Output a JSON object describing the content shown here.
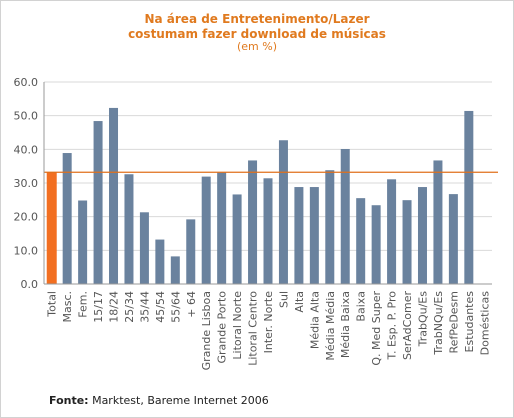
{
  "header": {
    "title_line1": "Na área de Entretenimento/Lazer",
    "title_line2": "costumam fazer download de músicas",
    "subtitle": "(em %)"
  },
  "source": {
    "label": "Fonte:",
    "text": "Marktest, Bareme Internet 2006"
  },
  "colors": {
    "bar": "#6a829e",
    "highlight": "#f26f21",
    "reference_line": "#e0701c",
    "grid": "#d9d9d9",
    "title": "#e07a1f"
  },
  "chart_data": {
    "type": "bar",
    "title": "Na área de Entretenimento/Lazer costumam fazer download de músicas",
    "subtitle": "(em %)",
    "xlabel": "",
    "ylabel": "",
    "ylim": [
      0,
      60
    ],
    "yticks": [
      "0.0",
      "10.0",
      "20.0",
      "30.0",
      "40.0",
      "50.0",
      "60.0"
    ],
    "grid": true,
    "reference_line": 33.2,
    "highlight_category": "Total",
    "categories": [
      "Total",
      "Masc.",
      "Fem.",
      "15/17",
      "18/24",
      "25/34",
      "35/44",
      "45/54",
      "55/64",
      "+ 64",
      "Grande Lisboa",
      "Grande Porto",
      "Litoral Norte",
      "Litoral Centro",
      "Inter. Norte",
      "Sul",
      "Alta",
      "Média  Alta",
      "Média Média",
      "Média Baixa",
      "Baixa",
      "Q. Med Super",
      "T. Esp. P. Pro",
      "SerAdComer",
      "TrabQu/Es",
      "TrabNQu/Es",
      "RefPeDesm",
      "Estudantes",
      "Domésticas"
    ],
    "values": [
      33.2,
      38.9,
      24.8,
      48.4,
      52.3,
      32.6,
      21.3,
      13.2,
      8.2,
      19.2,
      31.9,
      33.1,
      26.6,
      36.7,
      31.4,
      42.7,
      28.8,
      28.8,
      33.8,
      40.1,
      25.5,
      23.4,
      31.1,
      24.9,
      28.8,
      36.7,
      26.7,
      51.4,
      0
    ]
  }
}
